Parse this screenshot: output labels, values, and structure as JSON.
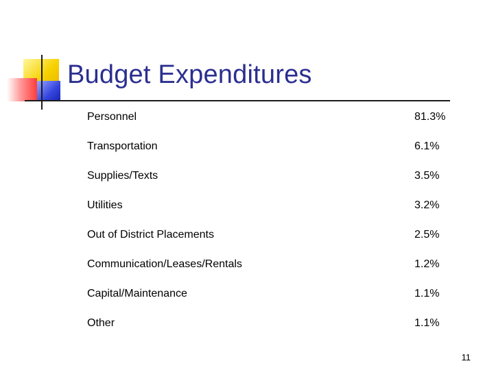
{
  "slide": {
    "title": "Budget Expenditures",
    "page_number": "11",
    "accent_colors": {
      "title": "#2b2f8f",
      "logo_yellow": "#f7d200",
      "logo_red": "#ff3b3b",
      "logo_blue": "#3344dd"
    }
  },
  "expenditures": [
    {
      "label": "Personnel",
      "value": "81.3%"
    },
    {
      "label": "Transportation",
      "value": "6.1%"
    },
    {
      "label": "Supplies/Texts",
      "value": "3.5%"
    },
    {
      "label": "Utilities",
      "value": "3.2%"
    },
    {
      "label": "Out of District Placements",
      "value": "2.5%"
    },
    {
      "label": "Communication/Leases/Rentals",
      "value": "1.2%"
    },
    {
      "label": "Capital/Maintenance",
      "value": "1.1%"
    },
    {
      "label": "Other",
      "value": "1.1%"
    }
  ]
}
